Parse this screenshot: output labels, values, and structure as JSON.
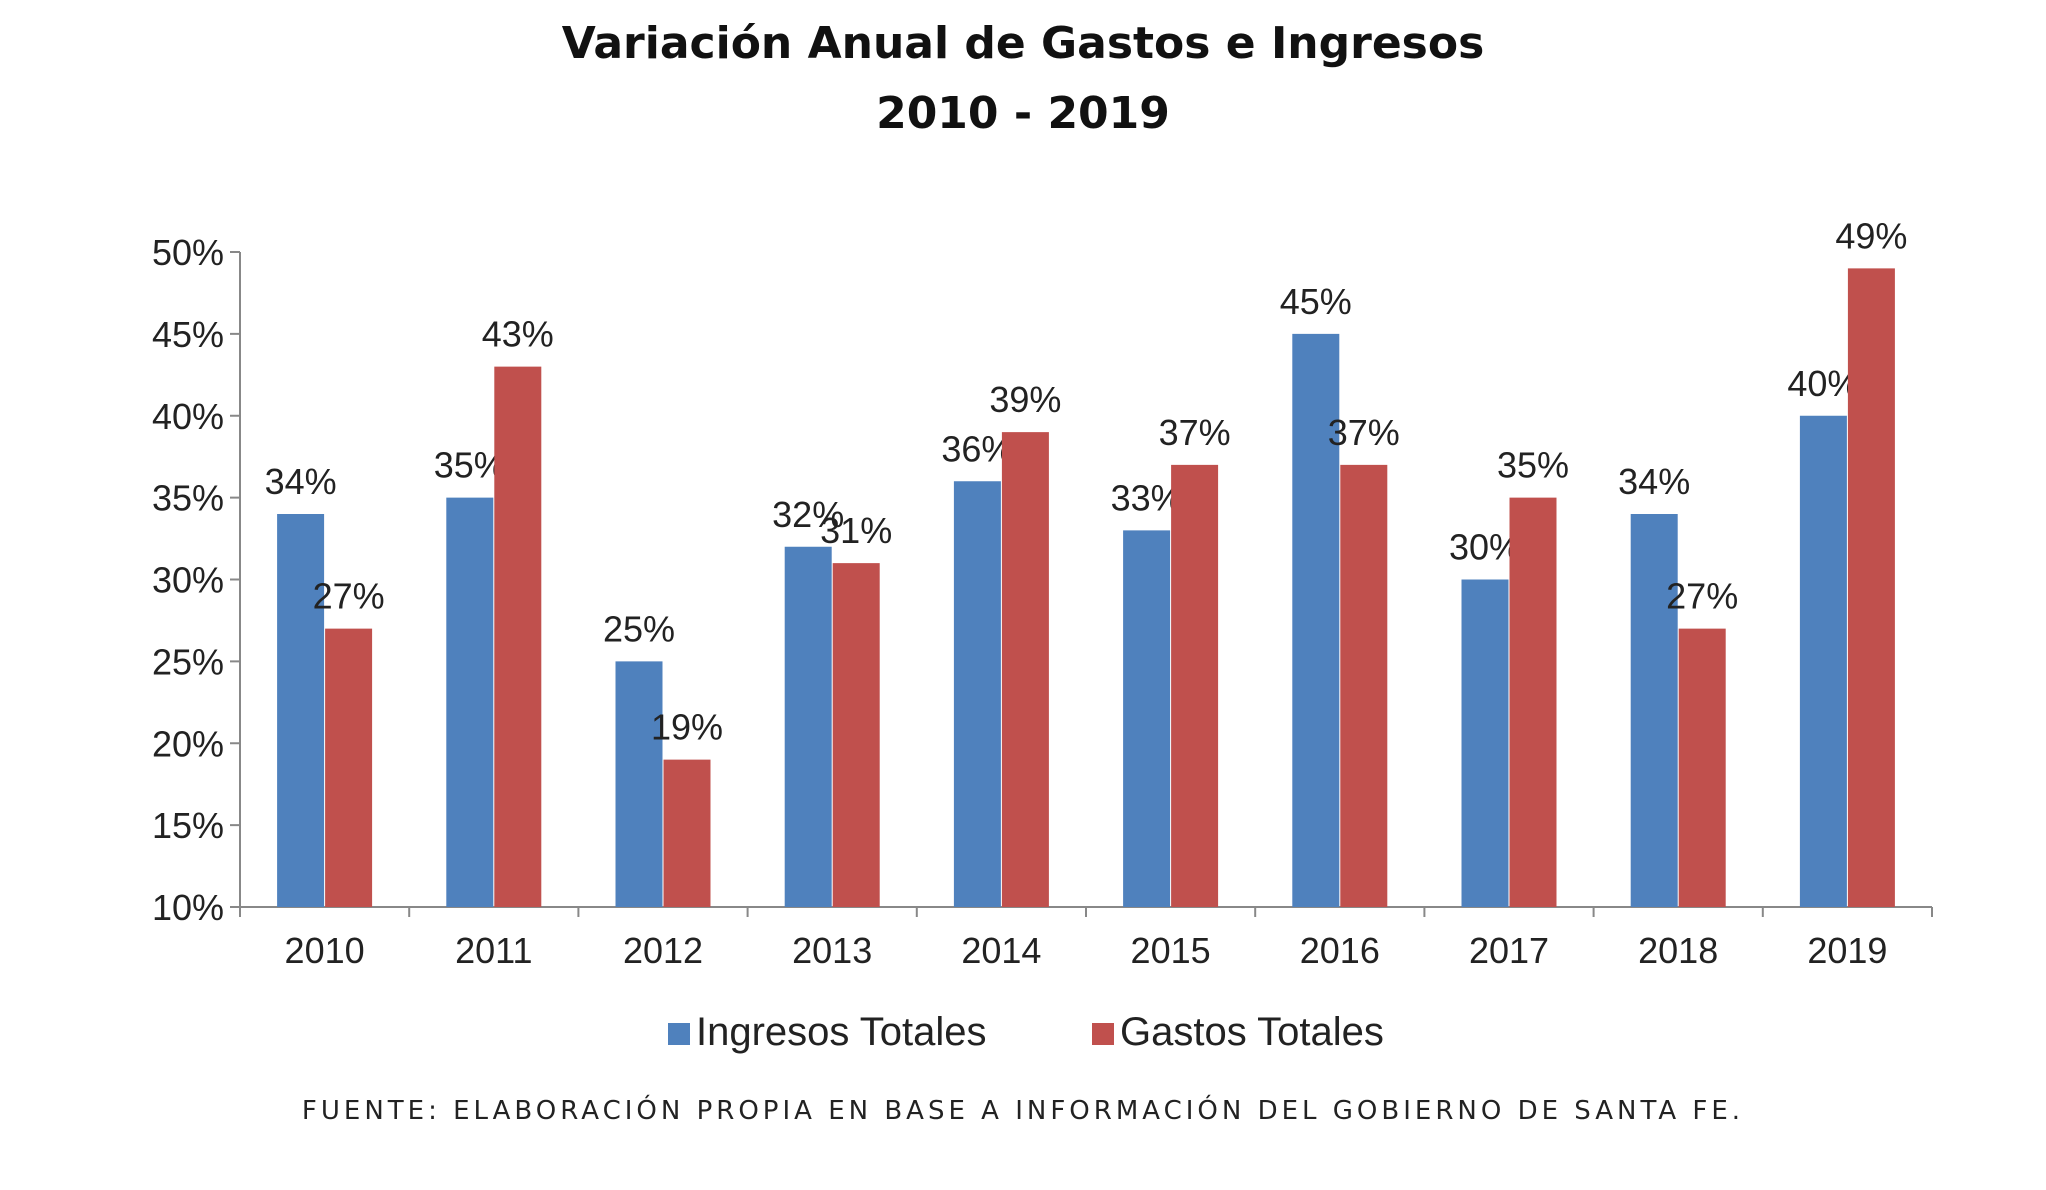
{
  "chart_data": {
    "type": "bar",
    "title": "Variación Anual de Gastos e Ingresos",
    "subtitle": "2010 - 2019",
    "categories": [
      "2010",
      "2011",
      "2012",
      "2013",
      "2014",
      "2015",
      "2016",
      "2017",
      "2018",
      "2019"
    ],
    "series": [
      {
        "name": "Ingresos Totales",
        "color": "#4F81BD",
        "values": [
          34,
          35,
          25,
          32,
          36,
          33,
          45,
          30,
          34,
          40
        ],
        "labels": [
          "34%",
          "35%",
          "25%",
          "32%",
          "36%",
          "33%",
          "45%",
          "30%",
          "34%",
          "40%"
        ]
      },
      {
        "name": "Gastos Totales",
        "color": "#C0504D",
        "values": [
          27,
          43,
          19,
          31,
          39,
          37,
          37,
          35,
          27,
          49
        ],
        "labels": [
          "27%",
          "43%",
          "19%",
          "31%",
          "39%",
          "37%",
          "37%",
          "35%",
          "27%",
          "49%"
        ]
      }
    ],
    "ylim": [
      10,
      50
    ],
    "yticks": [
      "10%",
      "15%",
      "20%",
      "25%",
      "30%",
      "35%",
      "40%",
      "45%",
      "50%"
    ],
    "xlabel": "",
    "ylabel": "",
    "grid": false,
    "legend_position": "bottom"
  },
  "source_note": "FUENTE: ELABORACIÓN PROPIA EN BASE A INFORMACIÓN DEL GOBIERNO DE SANTA FE."
}
